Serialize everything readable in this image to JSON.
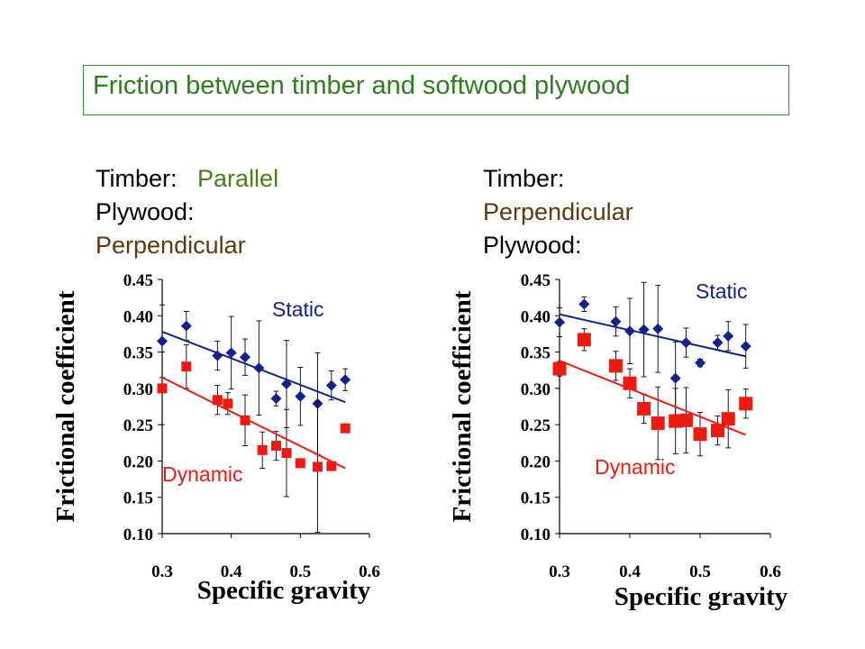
{
  "title": "Friction between timber and softwood plywood",
  "conditions": [
    {
      "timber_label": "Timber:",
      "timber_value": "Parallel",
      "plywood_label": "Plywood:",
      "plywood_value": "Perpendicular"
    },
    {
      "timber_label": "Timber:",
      "timber_value": "Perpendicular",
      "plywood_label": "Plywood:",
      "plywood_value": ""
    }
  ],
  "colors": {
    "static": "#13218f",
    "dynamic": "#ee1a10",
    "title": "#2e7d1e",
    "brown": "#5a3a0e",
    "green": "#4a7f1a"
  },
  "chart_data": [
    {
      "type": "scatter",
      "xlabel": "Specific gravity",
      "ylabel": "Frictional coefficient",
      "xlim": [
        0.3,
        0.6
      ],
      "ylim": [
        0.1,
        0.45
      ],
      "xticks": [
        "0.3",
        "0.4",
        "0.5",
        "0.6"
      ],
      "yticks": [
        "0.45",
        "0.40",
        "0.35",
        "0.30",
        "0.25",
        "0.20",
        "0.15",
        "0.10"
      ],
      "series": [
        {
          "name": "Static",
          "marker": "diamond",
          "points": [
            {
              "x": 0.3,
              "y": 0.365,
              "err": 0.05
            },
            {
              "x": 0.335,
              "y": 0.386,
              "err": 0.02
            },
            {
              "x": 0.38,
              "y": 0.345,
              "err": 0.02
            },
            {
              "x": 0.4,
              "y": 0.349,
              "err": 0.05
            },
            {
              "x": 0.42,
              "y": 0.343,
              "err": 0.025
            },
            {
              "x": 0.44,
              "y": 0.328,
              "err": 0.065
            },
            {
              "x": 0.465,
              "y": 0.286,
              "err": 0.01
            },
            {
              "x": 0.48,
              "y": 0.306,
              "err": 0.06
            },
            {
              "x": 0.5,
              "y": 0.289,
              "err": 0.04
            },
            {
              "x": 0.525,
              "y": 0.279,
              "err": 0.07
            },
            {
              "x": 0.545,
              "y": 0.304,
              "err": 0.02
            },
            {
              "x": 0.565,
              "y": 0.312,
              "err": 0.015
            }
          ],
          "fit": [
            [
              0.3,
              0.378
            ],
            [
              0.565,
              0.281
            ]
          ]
        },
        {
          "name": "Dynamic",
          "marker": "square",
          "points": [
            {
              "x": 0.3,
              "y": 0.3,
              "err": 0.05
            },
            {
              "x": 0.335,
              "y": 0.33,
              "err": 0.03
            },
            {
              "x": 0.38,
              "y": 0.284,
              "err": 0.02
            },
            {
              "x": 0.395,
              "y": 0.279,
              "err": 0.015
            },
            {
              "x": 0.42,
              "y": 0.256,
              "err": 0.035
            },
            {
              "x": 0.445,
              "y": 0.215,
              "err": 0.025
            },
            {
              "x": 0.465,
              "y": 0.221,
              "err": 0.02
            },
            {
              "x": 0.48,
              "y": 0.211,
              "err": 0.06
            },
            {
              "x": 0.5,
              "y": 0.197,
              "err": 0.005
            },
            {
              "x": 0.525,
              "y": 0.192,
              "err": 0.09
            },
            {
              "x": 0.545,
              "y": 0.193,
              "err": 0.005
            },
            {
              "x": 0.565,
              "y": 0.245,
              "err": 0.005
            }
          ],
          "fit": [
            [
              0.3,
              0.315
            ],
            [
              0.565,
              0.19
            ]
          ]
        }
      ]
    },
    {
      "type": "scatter",
      "xlabel": "Specific gravity",
      "ylabel": "Frictional coefficient",
      "xlim": [
        0.3,
        0.6
      ],
      "ylim": [
        0.1,
        0.45
      ],
      "xticks": [
        "0.3",
        "0.4",
        "0.5",
        "0.6"
      ],
      "yticks": [
        "0.45",
        "0.40",
        "0.35",
        "0.30",
        "0.25",
        "0.20",
        "0.15",
        "0.10"
      ],
      "series": [
        {
          "name": "Static",
          "marker": "diamond",
          "points": [
            {
              "x": 0.3,
              "y": 0.391,
              "err": 0.02
            },
            {
              "x": 0.335,
              "y": 0.416,
              "err": 0.01
            },
            {
              "x": 0.38,
              "y": 0.392,
              "err": 0.02
            },
            {
              "x": 0.4,
              "y": 0.379,
              "err": 0.045
            },
            {
              "x": 0.42,
              "y": 0.381,
              "err": 0.065
            },
            {
              "x": 0.44,
              "y": 0.382,
              "err": 0.06
            },
            {
              "x": 0.465,
              "y": 0.314,
              "err": 0.05
            },
            {
              "x": 0.48,
              "y": 0.363,
              "err": 0.02
            },
            {
              "x": 0.5,
              "y": 0.335,
              "err": 0.005
            },
            {
              "x": 0.525,
              "y": 0.363,
              "err": 0.01
            },
            {
              "x": 0.54,
              "y": 0.372,
              "err": 0.02
            },
            {
              "x": 0.565,
              "y": 0.358,
              "err": 0.03
            }
          ],
          "fit": [
            [
              0.3,
              0.402
            ],
            [
              0.565,
              0.344
            ]
          ]
        },
        {
          "name": "Dynamic",
          "marker": "square",
          "points": [
            {
              "x": 0.3,
              "y": 0.327,
              "err": 0.01
            },
            {
              "x": 0.335,
              "y": 0.367,
              "err": 0.015
            },
            {
              "x": 0.38,
              "y": 0.331,
              "err": 0.02
            },
            {
              "x": 0.4,
              "y": 0.307,
              "err": 0.02
            },
            {
              "x": 0.42,
              "y": 0.272,
              "err": 0.02
            },
            {
              "x": 0.44,
              "y": 0.252,
              "err": 0.05
            },
            {
              "x": 0.465,
              "y": 0.255,
              "err": 0.045
            },
            {
              "x": 0.48,
              "y": 0.256,
              "err": 0.045
            },
            {
              "x": 0.5,
              "y": 0.237,
              "err": 0.03
            },
            {
              "x": 0.525,
              "y": 0.242,
              "err": 0.02
            },
            {
              "x": 0.54,
              "y": 0.258,
              "err": 0.04
            },
            {
              "x": 0.565,
              "y": 0.279,
              "err": 0.02
            }
          ],
          "fit": [
            [
              0.3,
              0.338
            ],
            [
              0.565,
              0.236
            ]
          ]
        }
      ]
    }
  ]
}
